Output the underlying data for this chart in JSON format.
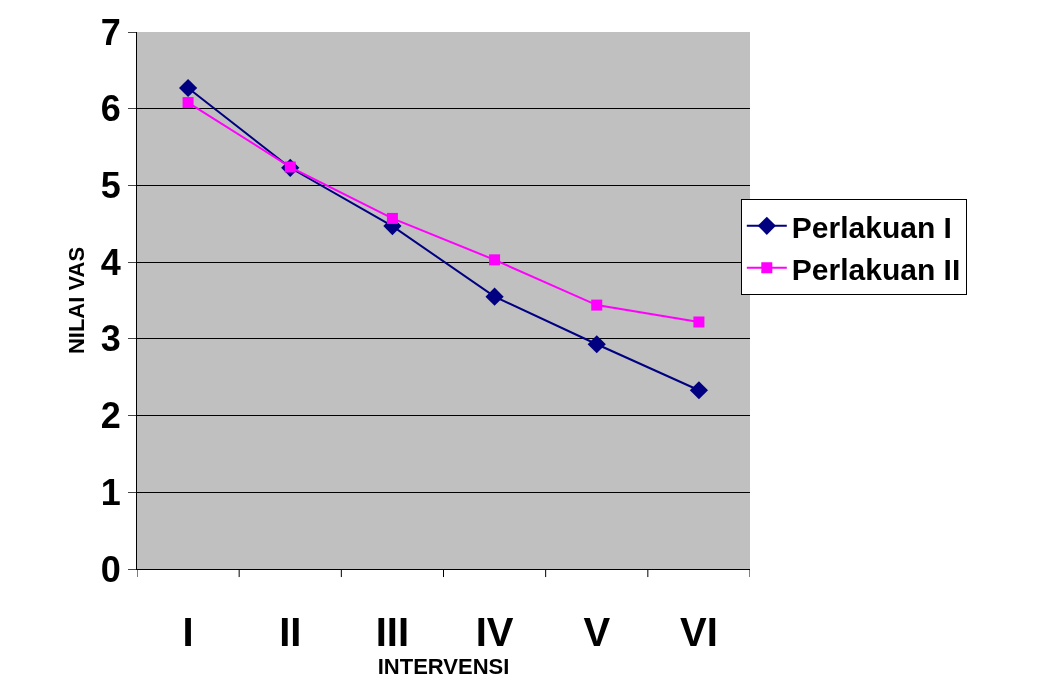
{
  "chart_data": {
    "type": "line",
    "xlabel": "INTERVENSI",
    "ylabel": "NILAI VAS",
    "categories": [
      "I",
      "II",
      "III",
      "IV",
      "V",
      "VI"
    ],
    "series": [
      {
        "name": "Perlakuan I",
        "color": "#000080",
        "marker": "diamond",
        "values": [
          6.27,
          5.23,
          4.47,
          3.55,
          2.93,
          2.33
        ]
      },
      {
        "name": "Perlakuan II",
        "color": "#ff00ff",
        "marker": "square",
        "values": [
          6.08,
          5.24,
          4.57,
          4.03,
          3.44,
          3.22
        ]
      }
    ],
    "ylim": [
      0,
      7
    ],
    "yticks": [
      0,
      1,
      2,
      3,
      4,
      5,
      6,
      7
    ],
    "grid": "y",
    "legend": "right",
    "line_style": "solid"
  }
}
